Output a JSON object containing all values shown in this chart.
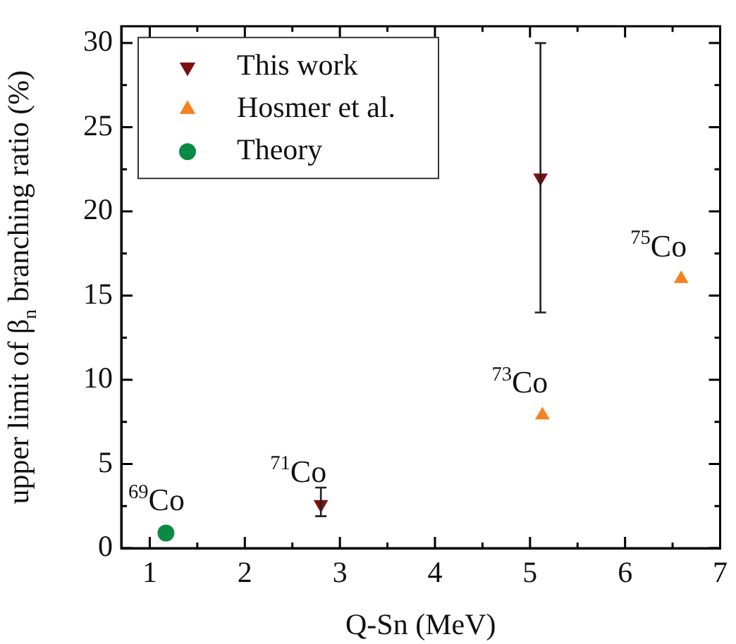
{
  "chart_data": {
    "type": "scatter",
    "xlabel": "Q-Sn (MeV)",
    "ylabel": "upper limit of β$_{n}$ branching ratio (%)",
    "xlim": [
      0.7,
      7
    ],
    "ylim": [
      0,
      31
    ],
    "xticks": [
      1,
      {
        "value": 1.5,
        "label": null
      },
      2,
      {
        "value": 2.5,
        "label": null
      },
      3,
      {
        "value": 3.5,
        "label": null
      },
      4,
      {
        "value": 4.5,
        "label": null
      },
      5,
      {
        "value": 5.5,
        "label": null
      },
      6,
      {
        "value": 6.5,
        "label": null
      },
      7
    ],
    "yticks": [
      0,
      {
        "value": 2.5,
        "label": null
      },
      5,
      {
        "value": 7.5,
        "label": null
      },
      10,
      {
        "value": 12.5,
        "label": null
      },
      15,
      {
        "value": 17.5,
        "label": null
      },
      20,
      {
        "value": 22.5,
        "label": null
      },
      25,
      {
        "value": 27.5,
        "label": null
      },
      30
    ],
    "legend": "top left",
    "grid": false,
    "series": [
      {
        "name": "This work",
        "color": "#7b1113",
        "marker": "triangle-down",
        "x": [
          2.8,
          5.11
        ],
        "values": [
          2.6,
          22
        ],
        "errors": [
          [
            1.9,
            3.6
          ],
          [
            14,
            30
          ]
        ]
      },
      {
        "name": "Hosmer et al.",
        "color": "#f58220",
        "marker": "triangle",
        "x": [
          5.13,
          6.59
        ],
        "values": [
          7.9,
          16
        ]
      },
      {
        "name": "Theory",
        "color": "#0b8a44",
        "marker": "circle",
        "x": [
          1.17
        ],
        "values": [
          0.9
        ]
      }
    ],
    "annotations": [
      {
        "text": "$^{69}$Co",
        "x": 1.17,
        "y": 0.9
      },
      {
        "text": "$^{71}$Co",
        "x": 2.8,
        "y": 2.6
      },
      {
        "text": "$^{73}$Co",
        "x": 5.13,
        "y": 7.9
      },
      {
        "text": "$^{75}$Co",
        "x": 6.59,
        "y": 16
      }
    ]
  }
}
